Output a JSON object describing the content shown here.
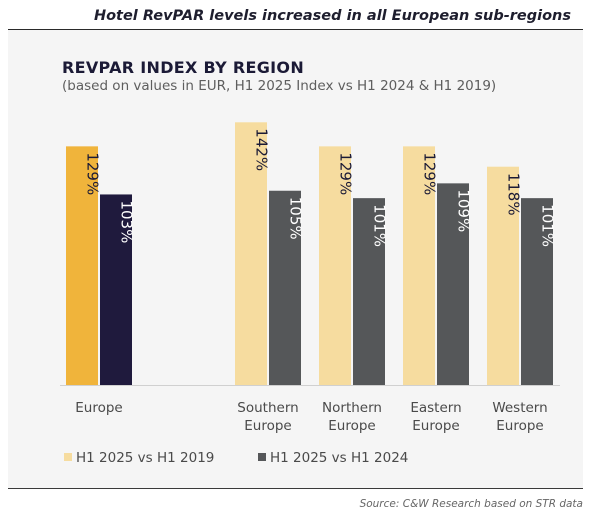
{
  "headline": "Hotel RevPAR levels increased in all European sub-regions",
  "source": "Source: C&W Research based on STR data",
  "colors": {
    "europe_2019": "#f0b43b",
    "europe_2024": "#1f1a3d",
    "region_2019": "#f6dc9f",
    "region_2024": "#555759",
    "panel_bg": "#f5f5f5"
  },
  "chart_data": {
    "type": "bar",
    "title": "REVPAR INDEX BY REGION",
    "subtitle": "(based on values in EUR, H1 2025 Index vs H1 2024 & H1 2019)",
    "categories": [
      "Europe",
      "Southern Europe",
      "Northern Europe",
      "Eastern Europe",
      "Western Europe"
    ],
    "category_lines": [
      [
        "Europe"
      ],
      [
        "Southern",
        "Europe"
      ],
      [
        "Northern",
        "Europe"
      ],
      [
        "Eastern",
        "Europe"
      ],
      [
        "Western",
        "Europe"
      ]
    ],
    "series": [
      {
        "name": "H1 2025 vs H1 2019",
        "values": [
          129,
          142,
          129,
          129,
          118
        ],
        "labels": [
          "129%",
          "142%",
          "129%",
          "129%",
          "118%"
        ]
      },
      {
        "name": "H1 2025 vs H1 2024",
        "values": [
          103,
          105,
          101,
          109,
          101
        ],
        "labels": [
          "103%",
          "105%",
          "101%",
          "109%",
          "101%"
        ]
      }
    ],
    "legend_position": "bottom-left",
    "grid": false,
    "ylim": [
      0,
      150
    ]
  }
}
